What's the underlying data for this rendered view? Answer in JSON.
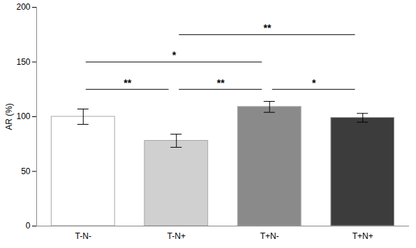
{
  "chart_data": {
    "type": "bar",
    "categories": [
      "T-N-",
      "T-N+",
      "T+N-",
      "T+N+"
    ],
    "values": [
      100,
      78,
      109,
      99
    ],
    "errors": [
      7,
      6,
      5,
      4
    ],
    "colors": [
      "#ffffff",
      "#d0d0d0",
      "#8a8a8a",
      "#3c3c3c"
    ],
    "y_label": "AR (%)",
    "ylim": [
      0,
      200
    ],
    "yticks": [
      0,
      50,
      100,
      150,
      200
    ],
    "grid": false,
    "annotations": [
      {
        "from": "T-N-",
        "to": "T-N+",
        "y": 125,
        "label": "**"
      },
      {
        "from": "T-N+",
        "to": "T+N-",
        "y": 125,
        "label": "**"
      },
      {
        "from": "T+N-",
        "to": "T+N+",
        "y": 125,
        "label": "*"
      },
      {
        "from": "T-N-",
        "to": "T+N-",
        "y": 150,
        "label": "*"
      },
      {
        "from": "T-N+",
        "to": "T+N+",
        "y": 175,
        "label": "**"
      }
    ]
  }
}
